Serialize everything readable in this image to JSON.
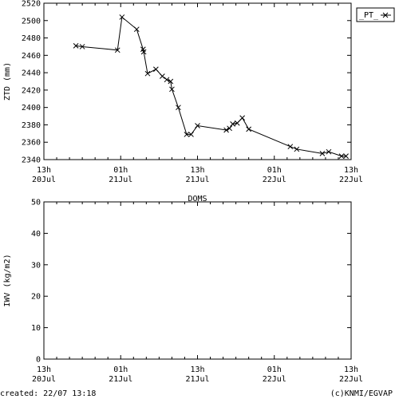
{
  "chart_data": [
    {
      "type": "line",
      "ylabel": "ZTD (mm)",
      "ylim": [
        2340,
        2520
      ],
      "yticks": [
        2340,
        2360,
        2380,
        2400,
        2420,
        2440,
        2460,
        2480,
        2500,
        2520
      ],
      "xlim_hours": [
        0,
        48
      ],
      "xtick_hours": [
        0,
        12,
        24,
        36,
        48
      ],
      "xtick_labels": [
        [
          "13h",
          "20Jul"
        ],
        [
          "01h",
          "21Jul"
        ],
        [
          "13h",
          "21Jul"
        ],
        [
          "01h",
          "22Jul"
        ],
        [
          "13h",
          "22Jul"
        ]
      ],
      "legend": "_PT_",
      "legend_position": "top-right",
      "grid": false,
      "series": [
        {
          "name": "_PT_",
          "marker": "x",
          "x_hours": [
            5.0,
            6.0,
            11.5,
            12.2,
            14.5,
            15.5,
            15.6,
            16.2,
            17.5,
            18.5,
            19.2,
            19.8,
            20.0,
            21.0,
            22.3,
            23.0,
            24.0,
            28.5,
            29.0,
            29.5,
            30.2,
            31.0,
            32.0,
            38.5,
            39.5,
            43.5,
            44.5,
            46.5,
            47.2
          ],
          "values": [
            2471,
            2470,
            2466,
            2504,
            2490,
            2467,
            2464,
            2439,
            2444,
            2436,
            2432,
            2430,
            2421,
            2400,
            2369,
            2369,
            2379,
            2374,
            2376,
            2381,
            2382,
            2388,
            2375,
            2355,
            2352,
            2347,
            2349,
            2344,
            2344
          ]
        }
      ]
    },
    {
      "type": "line",
      "title": "DOMS",
      "ylabel": "IWV (kg/m2)",
      "ylim": [
        0,
        50
      ],
      "yticks": [
        0,
        10,
        20,
        30,
        40,
        50
      ],
      "xlim_hours": [
        0,
        48
      ],
      "xtick_hours": [
        0,
        12,
        24,
        36,
        48
      ],
      "xtick_labels": [
        [
          "13h",
          "20Jul"
        ],
        [
          "01h",
          "21Jul"
        ],
        [
          "13h",
          "21Jul"
        ],
        [
          "01h",
          "22Jul"
        ],
        [
          "13h",
          "22Jul"
        ]
      ],
      "grid": false,
      "series": []
    }
  ],
  "footer": {
    "created": "created: 22/07 13:18",
    "credit": "(c)KNMI/EGVAP"
  }
}
